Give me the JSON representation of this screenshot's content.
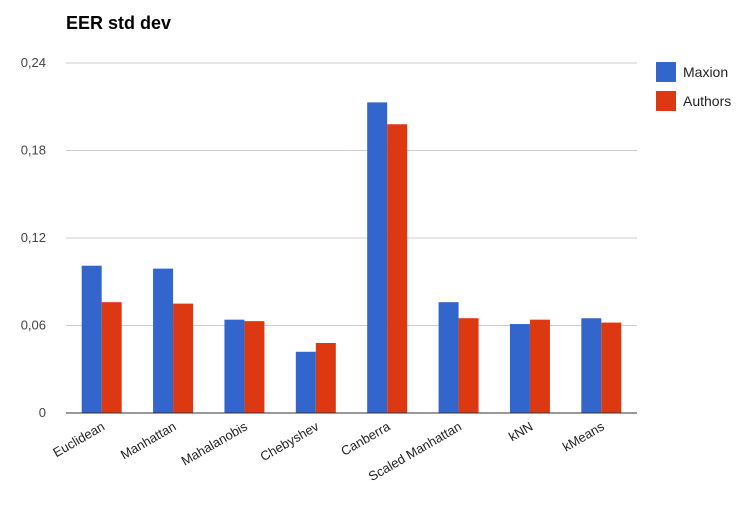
{
  "chart_data": {
    "type": "bar",
    "title": "EER std dev",
    "categories": [
      "Euclidean",
      "Manhattan",
      "Mahalanobis",
      "Chebyshev",
      "Canberra",
      "Scaled Manhattan",
      "kNN",
      "kMeans"
    ],
    "series": [
      {
        "name": "Maxion",
        "color": "#3366cc",
        "values": [
          0.101,
          0.099,
          0.064,
          0.042,
          0.213,
          0.076,
          0.061,
          0.065
        ]
      },
      {
        "name": "Authors",
        "color": "#dc3912",
        "values": [
          0.076,
          0.075,
          0.063,
          0.048,
          0.198,
          0.065,
          0.064,
          0.062
        ]
      }
    ],
    "yticks": [
      "0",
      "0,06",
      "0,12",
      "0,18",
      "0,24"
    ],
    "ylim": [
      0,
      0.24
    ],
    "grid": true,
    "legend_position": "right"
  }
}
